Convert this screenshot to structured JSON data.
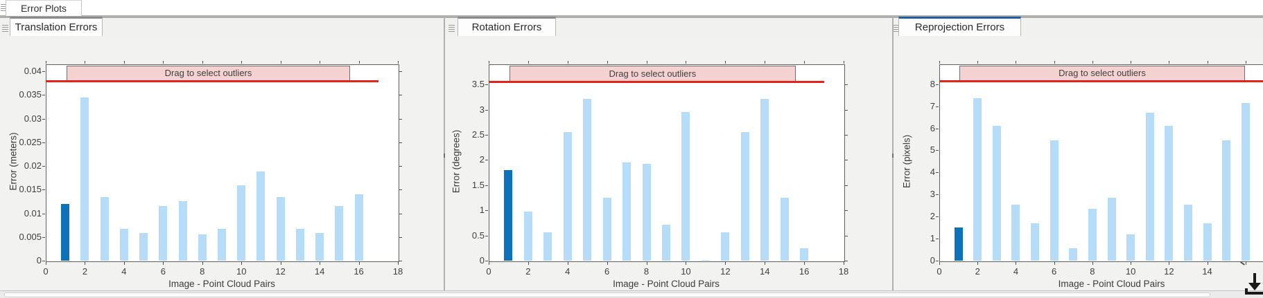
{
  "app": {
    "tab_label": "Error Plots"
  },
  "colors": {
    "bar_light": "#b5dcf8",
    "bar_selected": "#0d72bc",
    "threshold_red": "#e2231a",
    "banner_pink": "#f5d2d2",
    "tab_accent_gray": "#8a8a8a",
    "tab_accent_blue": "#1c5e9f",
    "panel_background": "#f2f2f1"
  },
  "panels": [
    {
      "tab": "Translation Errors"
    },
    {
      "tab": "Rotation Errors"
    },
    {
      "tab": "Reprojection Errors"
    }
  ],
  "chart_data": [
    {
      "type": "bar",
      "title": "Translation Errors",
      "xlabel": "Image - Point Cloud Pairs",
      "ylabel": "Error (meters)",
      "x": [
        1,
        2,
        3,
        4,
        5,
        6,
        7,
        8,
        9,
        10,
        11,
        12,
        13,
        14,
        15,
        16
      ],
      "values": [
        0.012,
        0.0345,
        0.0135,
        0.0067,
        0.0058,
        0.0116,
        0.0126,
        0.0056,
        0.0067,
        0.016,
        0.0188,
        0.0135,
        0.0067,
        0.0058,
        0.0116,
        0.014
      ],
      "selected_pair": 1,
      "xlim": [
        0,
        18
      ],
      "ylim": [
        0,
        0.0415
      ],
      "xticks": [
        0,
        2,
        4,
        6,
        8,
        10,
        12,
        14,
        16,
        18
      ],
      "xtick_labels": [
        "0",
        "2",
        "4",
        "6",
        "8",
        "10",
        "12",
        "14",
        "16",
        "18"
      ],
      "yticks": [
        0,
        0.005,
        0.01,
        0.015,
        0.02,
        0.025,
        0.03,
        0.035,
        0.04
      ],
      "ytick_labels": [
        "0",
        "0.005",
        "0.01",
        "0.015",
        "0.02",
        "0.025",
        "0.03",
        "0.035",
        "0.04"
      ],
      "threshold": {
        "value": 0.038,
        "x_span": [
          0,
          17
        ]
      },
      "banner": {
        "label": "Drag to select outliers",
        "x_span": [
          1.05,
          15.5
        ]
      },
      "legend": "none",
      "grid": false
    },
    {
      "type": "bar",
      "title": "Rotation Errors",
      "xlabel": "Image - Point Cloud Pairs",
      "ylabel": "Error (degrees)",
      "x": [
        1,
        2,
        3,
        4,
        5,
        6,
        7,
        8,
        9,
        10,
        11,
        12,
        13,
        14,
        15,
        16
      ],
      "values": [
        1.8,
        0.98,
        0.56,
        2.56,
        3.22,
        1.25,
        1.95,
        1.92,
        0.71,
        2.95,
        0.02,
        0.56,
        2.56,
        3.22,
        1.25,
        0.25
      ],
      "selected_pair": 1,
      "xlim": [
        0,
        18
      ],
      "ylim": [
        0,
        3.9
      ],
      "xticks": [
        0,
        2,
        4,
        6,
        8,
        10,
        12,
        14,
        16,
        18
      ],
      "xtick_labels": [
        "0",
        "2",
        "4",
        "6",
        "8",
        "10",
        "12",
        "14",
        "16",
        "18"
      ],
      "yticks": [
        0,
        0.5,
        1,
        1.5,
        2,
        2.5,
        3,
        3.5
      ],
      "ytick_labels": [
        "0",
        "0.5",
        "1",
        "1.5",
        "2",
        "2.5",
        "3",
        "3.5"
      ],
      "threshold": {
        "value": 3.55,
        "x_span": [
          0,
          17
        ]
      },
      "banner": {
        "label": "Drag to select outliers",
        "x_span": [
          1.05,
          15.5
        ]
      },
      "legend": "none",
      "grid": false
    },
    {
      "type": "bar",
      "title": "Reprojection Errors",
      "xlabel": "Image - Point Cloud Pairs",
      "ylabel": "Error (pixels)",
      "x": [
        1,
        2,
        3,
        4,
        5,
        6,
        7,
        8,
        9,
        10,
        11,
        12,
        13,
        14,
        15,
        16
      ],
      "values": [
        1.5,
        7.35,
        6.1,
        2.55,
        1.7,
        5.45,
        0.55,
        2.35,
        2.85,
        1.2,
        6.7,
        6.1,
        2.55,
        1.7,
        5.45,
        7.15
      ],
      "selected_pair": 1,
      "xlim": [
        0,
        18
      ],
      "ylim": [
        0,
        8.9
      ],
      "xticks": [
        0,
        2,
        4,
        6,
        8,
        10,
        12,
        14,
        16
      ],
      "xtick_labels": [
        "0",
        "2",
        "4",
        "6",
        "8",
        "10",
        "12",
        "14",
        ""
      ],
      "yticks": [
        0,
        1,
        2,
        3,
        4,
        5,
        6,
        7,
        8
      ],
      "ytick_labels": [
        "0",
        "1",
        "2",
        "3",
        "4",
        "5",
        "6",
        "7",
        "8"
      ],
      "threshold": {
        "value": 8.15,
        "x_span": [
          0,
          18
        ]
      },
      "banner": {
        "label": "Drag to select outliers",
        "x_span": [
          1.05,
          15.9
        ]
      },
      "legend": "none",
      "grid": false
    }
  ]
}
